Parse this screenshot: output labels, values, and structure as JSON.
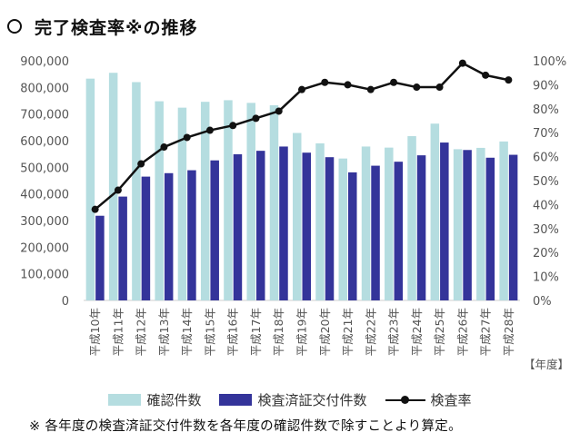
{
  "header": {
    "title": "完了検査率※の推移",
    "icon": "circle-icon"
  },
  "legend": {
    "confirm": "確認件数",
    "inspect": "検査済証交付件数",
    "rate": "検査率"
  },
  "footnote": "※ 各年度の検査済証交付件数を各年度の確認件数で除すことより算定。",
  "colors": {
    "confirm": "#b5dde0",
    "inspect": "#34349a",
    "rate": "#111111"
  },
  "chart_data": {
    "type": "bar",
    "title": "完了検査率※の推移",
    "xlabel": "【年度】",
    "categories": [
      "平成10年",
      "平成11年",
      "平成12年",
      "平成13年",
      "平成14年",
      "平成15年",
      "平成16年",
      "平成17年",
      "平成18年",
      "平成19年",
      "平成20年",
      "平成21年",
      "平成22年",
      "平成23年",
      "平成24年",
      "平成25年",
      "平成26年",
      "平成27年",
      "平成28年"
    ],
    "series": [
      {
        "name": "確認件数",
        "type": "bar",
        "axis": "left",
        "values": [
          833000,
          855000,
          820000,
          748000,
          724000,
          746000,
          752000,
          742000,
          733000,
          629000,
          590000,
          533000,
          578000,
          574000,
          617000,
          664000,
          568000,
          573000,
          597000
        ]
      },
      {
        "name": "検査済証交付件数",
        "type": "bar",
        "axis": "left",
        "values": [
          318000,
          390000,
          465000,
          478000,
          489000,
          526000,
          549000,
          562000,
          578000,
          555000,
          538000,
          481000,
          506000,
          521000,
          545000,
          593000,
          565000,
          536000,
          547000
        ]
      },
      {
        "name": "検査率",
        "type": "line",
        "axis": "right",
        "values": [
          38,
          46,
          57,
          64,
          68,
          71,
          73,
          76,
          79,
          88,
          91,
          90,
          88,
          91,
          89,
          89,
          99,
          94,
          92
        ]
      }
    ],
    "y_left": {
      "min": 0,
      "max": 900000,
      "step": 100000,
      "tick_labels": [
        "0",
        "100,000",
        "200,000",
        "300,000",
        "400,000",
        "500,000",
        "600,000",
        "700,000",
        "800,000",
        "900,000"
      ]
    },
    "y_right": {
      "min": 0,
      "max": 100,
      "step": 10,
      "tick_labels": [
        "0%",
        "10%",
        "20%",
        "30%",
        "40%",
        "50%",
        "60%",
        "70%",
        "80%",
        "90%",
        "100%"
      ]
    },
    "grid": false,
    "legend_position": "bottom"
  }
}
